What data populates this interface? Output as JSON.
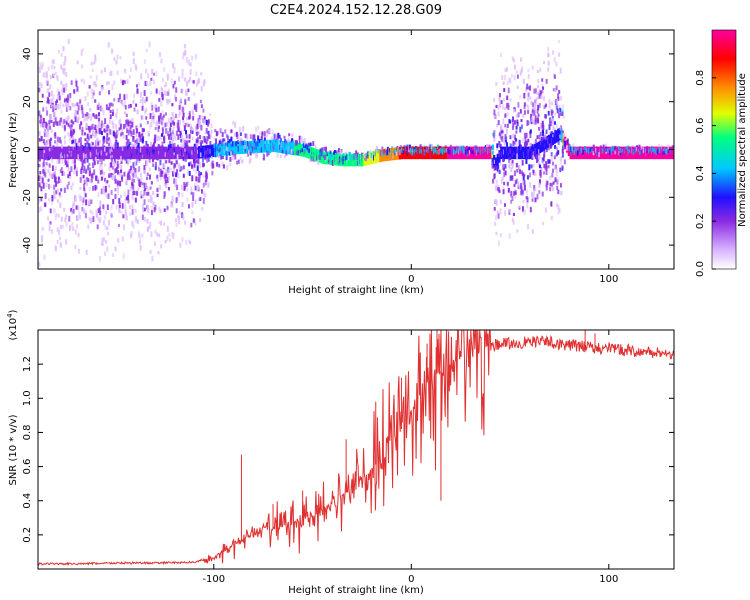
{
  "title": "C2E4.2024.152.12.28.G09",
  "colors": {
    "snr_line": "#e03030",
    "spectrogram_palette": [
      "#ffffff",
      "#e0c0ff",
      "#8a2be2",
      "#1f10ff",
      "#00c8ff",
      "#00ff80",
      "#e0ff00",
      "#ff8c00",
      "#ff0000",
      "#ff00a0"
    ]
  },
  "chart_data": [
    {
      "type": "heatmap",
      "name": "spectrogram",
      "title": "",
      "xlabel": "Height of straight line (km)",
      "ylabel": "Frequency (Hz)",
      "xlim": [
        -189,
        133
      ],
      "ylim": [
        -50,
        50
      ],
      "xticks": [
        -100,
        0,
        100
      ],
      "xtick_labels": [
        "-100",
        "0",
        "100"
      ],
      "yticks": [
        -40,
        -20,
        0,
        20,
        40
      ],
      "ytick_labels": [
        "-40",
        "-20",
        "0",
        "20",
        "40"
      ],
      "colorbar": {
        "label": "Normalized spectral amplitude",
        "range": [
          0,
          1
        ],
        "ticks": [
          0.0,
          0.2,
          0.4,
          0.6,
          0.8
        ],
        "tick_labels": [
          "0.0",
          "0.2",
          "0.4",
          "0.6",
          "0.8"
        ]
      },
      "center_frequency_track": {
        "x": [
          -189,
          -150,
          -110,
          -90,
          -70,
          -55,
          -45,
          -35,
          -25,
          -15,
          -5,
          5,
          15,
          25,
          40,
          42,
          45,
          60,
          75,
          80,
          100,
          133
        ],
        "y": [
          0,
          0,
          0,
          2,
          3,
          1,
          -2,
          -3,
          -3,
          -1,
          0,
          0,
          0,
          0,
          0,
          -5,
          0,
          0,
          8,
          0,
          0,
          0
        ]
      },
      "frequency_spread": {
        "x": [
          -189,
          -110,
          -100,
          -60,
          -20,
          0,
          40,
          41,
          75,
          77,
          133
        ],
        "y": [
          50,
          45,
          12,
          5,
          3,
          2,
          2,
          40,
          40,
          2,
          2
        ]
      },
      "normalized_amplitude": {
        "x": [
          -189,
          -110,
          -100,
          -60,
          -30,
          -10,
          0,
          20,
          40,
          41,
          75,
          77,
          133
        ],
        "y": [
          0.2,
          0.25,
          0.4,
          0.5,
          0.55,
          0.8,
          0.9,
          0.95,
          0.95,
          0.3,
          0.3,
          0.95,
          0.95
        ]
      }
    },
    {
      "type": "line",
      "name": "snr",
      "title": "",
      "xlabel": "Height of straight line (km)",
      "ylabel": "SNR (10 * v/v)",
      "y_scale_label": "(x10",
      "y_scale_exponent": "4",
      "y_scale_suffix": ")",
      "xlim": [
        -189,
        133
      ],
      "ylim": [
        0,
        14000
      ],
      "xticks": [
        -100,
        0,
        100
      ],
      "xtick_labels": [
        "-100",
        "0",
        "100"
      ],
      "yticks": [
        2000,
        4000,
        6000,
        8000,
        10000,
        12000
      ],
      "ytick_labels": [
        "0.2",
        "0.4",
        "0.6",
        "0.8",
        "1.0",
        "1.2"
      ],
      "series": [
        {
          "x": [
            -189,
            -170,
            -150,
            -130,
            -110,
            -100,
            -95,
            -90,
            -85,
            -80,
            -75,
            -70,
            -65,
            -60,
            -55,
            -50,
            -45,
            -40,
            -35,
            -30,
            -25,
            -20,
            -15,
            -10,
            -5,
            0,
            5,
            10,
            15,
            20,
            25,
            30,
            35,
            40,
            45,
            50,
            60,
            70,
            80,
            90,
            100,
            110,
            120,
            133
          ],
          "y": [
            300,
            300,
            350,
            350,
            400,
            700,
            1000,
            1400,
            1700,
            2000,
            2200,
            2400,
            2500,
            2700,
            2900,
            3100,
            3500,
            3800,
            4300,
            4800,
            5300,
            5800,
            6600,
            7300,
            8200,
            9300,
            10500,
            11200,
            11600,
            12000,
            12400,
            12800,
            13000,
            13100,
            13200,
            13200,
            13300,
            13300,
            13100,
            13000,
            12900,
            12800,
            12700,
            12600
          ]
        }
      ],
      "spikes": [
        {
          "x": -86,
          "y": 6700
        },
        {
          "x": -70,
          "y": 3800
        },
        {
          "x": -55,
          "y": 4600
        },
        {
          "x": -33,
          "y": 7600
        },
        {
          "x": -18,
          "y": 9800
        },
        {
          "x": -5,
          "y": 11200
        },
        {
          "x": 8,
          "y": 13200
        },
        {
          "x": 13,
          "y": 14000
        },
        {
          "x": 15,
          "y": 4000
        },
        {
          "x": 88,
          "y": 14000
        },
        {
          "x": 93,
          "y": 13800
        }
      ]
    }
  ]
}
